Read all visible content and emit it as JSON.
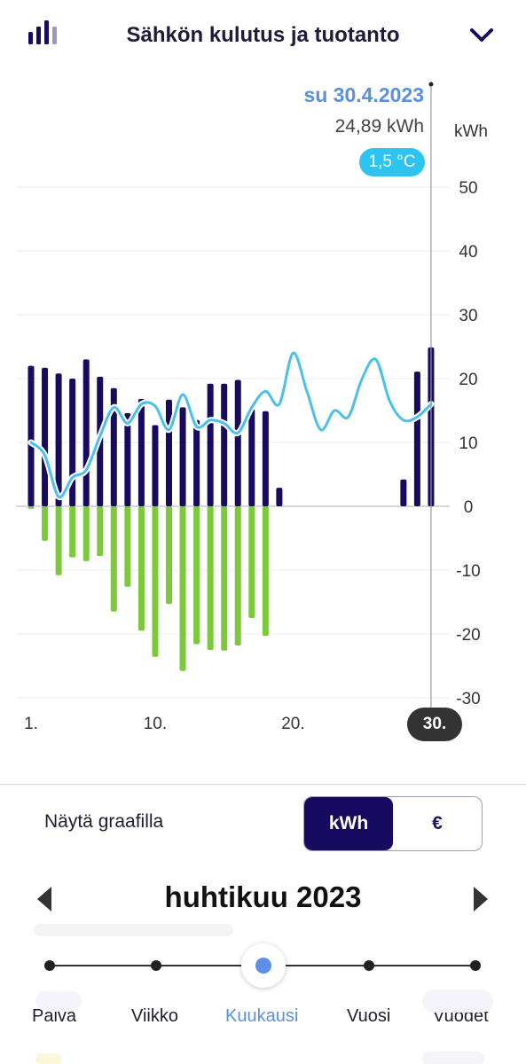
{
  "header": {
    "title": "Sähkön kulutus ja tuotanto",
    "icons": {
      "left": "bar-chart-icon",
      "right": "chevron-down-icon"
    }
  },
  "tooltip": {
    "date": "su 30.4.2023",
    "value": "24,89 kWh",
    "temperature": "1,5 °C"
  },
  "colors": {
    "consumption": "#160b5e",
    "production": "#7cc93a",
    "temperature": "#4cc0ea",
    "accent": "#5b8fe0",
    "grid": "#ececf0"
  },
  "chart_data": {
    "type": "bar",
    "unit": "kWh",
    "ylim": [
      -30,
      50
    ],
    "y_ticks": [
      "50",
      "40",
      "30",
      "20",
      "10",
      "0",
      "-10",
      "-20",
      "-30"
    ],
    "x_tick_labels": [
      "1.",
      "10.",
      "20."
    ],
    "x_tick_days": [
      1,
      10,
      20
    ],
    "selected_day_label": "30.",
    "days": [
      1,
      2,
      3,
      4,
      5,
      6,
      7,
      8,
      9,
      10,
      11,
      12,
      13,
      14,
      15,
      16,
      17,
      18,
      19,
      20,
      21,
      22,
      23,
      24,
      25,
      26,
      27,
      28,
      29,
      30
    ],
    "series": [
      {
        "name": "",
        "kind": "bar",
        "values": [
          22,
          21.7,
          20.8,
          20,
          23,
          20.3,
          18.5,
          14.6,
          16.8,
          12.7,
          16.7,
          15.5,
          13.5,
          19.2,
          19.2,
          19.8,
          15.2,
          14.9,
          2.9,
          0,
          0,
          0,
          0,
          0,
          0,
          0,
          0,
          4.2,
          21.1,
          24.89
        ]
      },
      {
        "name": "",
        "kind": "bar",
        "values": [
          -0.4,
          -5.4,
          -10.8,
          -8,
          -8.6,
          -7.8,
          -16.5,
          -12.6,
          -19.5,
          -23.6,
          -15.3,
          -25.8,
          -21.6,
          -22.5,
          -22.6,
          -21.8,
          -17.5,
          -20.3,
          0,
          0,
          0,
          0,
          0,
          0,
          0,
          0,
          0,
          0,
          0,
          0
        ]
      },
      {
        "name": "",
        "kind": "line",
        "values": [
          10,
          8,
          1.5,
          4.5,
          5.7,
          11,
          15.5,
          13,
          16,
          15.7,
          12,
          17.5,
          12.5,
          13.5,
          13,
          11.5,
          15.5,
          18,
          16,
          24,
          18,
          12,
          15,
          14,
          20,
          23,
          16.5,
          13.5,
          14,
          16
        ]
      }
    ]
  },
  "display": {
    "label": "Näytä graafilla",
    "options": [
      "kWh",
      "€"
    ],
    "selected": "kWh"
  },
  "period": {
    "title": "huhtikuu 2023",
    "prev": "chevron-left-icon",
    "next": "chevron-right-icon"
  },
  "granularity": {
    "options": [
      "Päivä",
      "Viikko",
      "Kuukausi",
      "Vuosi",
      "Vuodet"
    ],
    "selected_index": 2
  }
}
